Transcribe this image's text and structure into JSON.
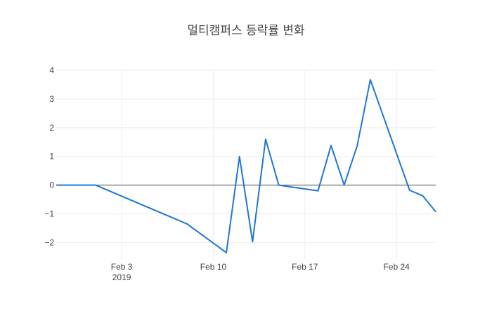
{
  "chart_data": {
    "type": "line",
    "title": "멀티캠퍼스 등락률 변화",
    "xlabel": "",
    "ylabel": "",
    "xlim": [
      "2019-01-29",
      "2019-02-27"
    ],
    "ylim": [
      -2.6,
      4
    ],
    "x_ticks": [
      {
        "date": "2019-02-03",
        "label": "Feb 3",
        "sublabel": "2019"
      },
      {
        "date": "2019-02-10",
        "label": "Feb 10",
        "sublabel": ""
      },
      {
        "date": "2019-02-17",
        "label": "Feb 17",
        "sublabel": ""
      },
      {
        "date": "2019-02-24",
        "label": "Feb 24",
        "sublabel": ""
      }
    ],
    "y_ticks": [
      {
        "value": 4,
        "label": "4"
      },
      {
        "value": 3,
        "label": "3"
      },
      {
        "value": 2,
        "label": "2"
      },
      {
        "value": 1,
        "label": "1"
      },
      {
        "value": 0,
        "label": "0"
      },
      {
        "value": -1,
        "label": "−1"
      },
      {
        "value": -2,
        "label": "−2"
      }
    ],
    "grid": true,
    "series": [
      {
        "color": "#1f77d4",
        "x": [
          "2019-01-29",
          "2019-01-30",
          "2019-01-31",
          "2019-02-01",
          "2019-02-08",
          "2019-02-11",
          "2019-02-12",
          "2019-02-13",
          "2019-02-14",
          "2019-02-15",
          "2019-02-18",
          "2019-02-19",
          "2019-02-20",
          "2019-02-21",
          "2019-02-22",
          "2019-02-25",
          "2019-02-26",
          "2019-02-27"
        ],
        "y": [
          0,
          0,
          0,
          0,
          -1.35,
          -2.35,
          1.0,
          -1.97,
          1.6,
          0.0,
          -0.2,
          1.38,
          0.0,
          1.38,
          3.67,
          -0.18,
          -0.37,
          -0.93
        ]
      }
    ]
  }
}
